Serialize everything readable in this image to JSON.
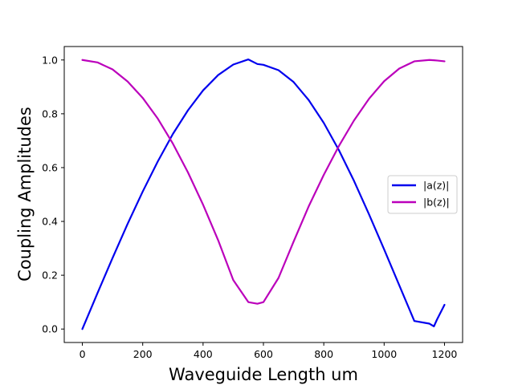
{
  "chart_data": {
    "type": "line",
    "title": "",
    "xlabel": "Waveguide Length um",
    "ylabel": "Coupling Amplitudes",
    "xlim": [
      -60,
      1260
    ],
    "ylim": [
      -0.05,
      1.05
    ],
    "x_ticks": [
      0,
      200,
      400,
      600,
      800,
      1000,
      1200
    ],
    "y_ticks": [
      0.0,
      0.2,
      0.4,
      0.6,
      0.8,
      1.0
    ],
    "x_tick_labels": [
      "0",
      "200",
      "400",
      "600",
      "800",
      "1000",
      "1200"
    ],
    "y_tick_labels": [
      "0.0",
      "0.2",
      "0.4",
      "0.6",
      "0.8",
      "1.0"
    ],
    "grid": false,
    "legend_position": "center-right",
    "x": [
      0,
      50,
      100,
      150,
      200,
      250,
      300,
      350,
      400,
      450,
      500,
      550,
      580,
      600,
      650,
      700,
      750,
      800,
      850,
      900,
      950,
      1000,
      1050,
      1100,
      1150,
      1165,
      1175,
      1200
    ],
    "series": [
      {
        "name": "|a(z)|",
        "color": "#0000ee",
        "values": [
          0.0,
          0.133,
          0.264,
          0.391,
          0.511,
          0.623,
          0.725,
          0.813,
          0.887,
          0.944,
          0.983,
          1.002,
          0.985,
          0.982,
          0.962,
          0.918,
          0.851,
          0.766,
          0.665,
          0.551,
          0.426,
          0.296,
          0.163,
          0.03,
          0.02,
          0.01,
          0.035,
          0.09
        ]
      },
      {
        "name": "|b(z)|",
        "color": "#bb00bb",
        "values": [
          1.0,
          0.991,
          0.965,
          0.92,
          0.859,
          0.782,
          0.689,
          0.582,
          0.462,
          0.33,
          0.182,
          0.1,
          0.094,
          0.1,
          0.19,
          0.325,
          0.456,
          0.573,
          0.68,
          0.775,
          0.856,
          0.921,
          0.968,
          0.995,
          1.0,
          0.999,
          0.998,
          0.995
        ]
      }
    ]
  }
}
